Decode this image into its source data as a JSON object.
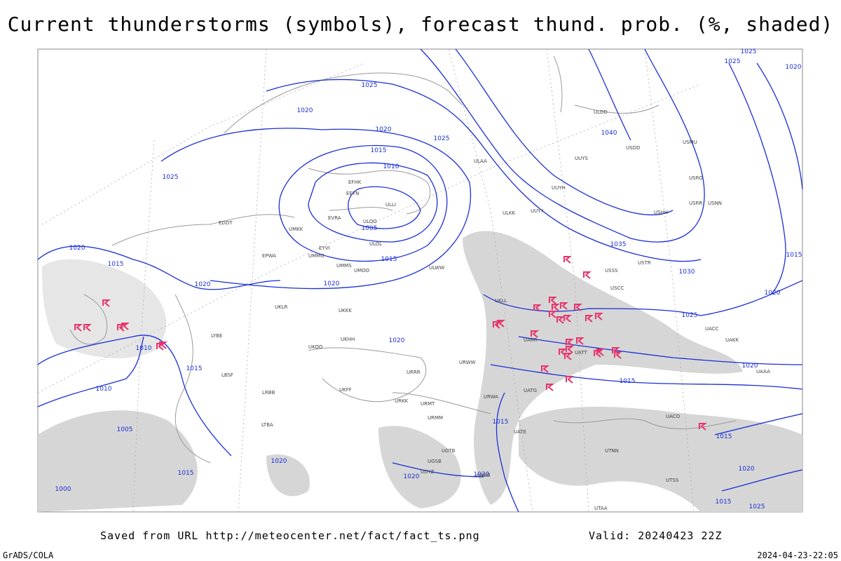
{
  "header": {
    "title": "Current thunderstorms (symbols), forecast thund. prob. (%, shaded)"
  },
  "footer": {
    "source": "Saved from URL http://meteocenter.net/fact/fact_ts.png",
    "valid": "Valid: 20240423 22Z",
    "credit": "GrADS/COLA",
    "timestamp": "2024-04-23-22:05"
  },
  "isobar_labels": [
    "1025",
    "1020",
    "1020",
    "1025",
    "1015",
    "1010",
    "1005",
    "1015",
    "1020",
    "1025",
    "1020",
    "1015",
    "1020",
    "1010",
    "1015",
    "1010",
    "1005",
    "1000",
    "1015",
    "1020",
    "1020",
    "1020",
    "1020",
    "1015",
    "1015",
    "1020",
    "1025",
    "1030",
    "1035",
    "1040",
    "1025",
    "1025",
    "1020",
    "1020",
    "1015",
    "1015",
    "1020",
    "1015",
    "1025"
  ],
  "stations": [
    "EFHK",
    "EETN",
    "ULLI",
    "ULOO",
    "EVRA",
    "ULOL",
    "UMMG",
    "EYVI",
    "UMMS",
    "UMOO",
    "ULWW",
    "ULAA",
    "ULKK",
    "UUYY",
    "UUYH",
    "UUYS",
    "ULDD",
    "USDD",
    "USMU",
    "USRO",
    "USRR",
    "USNN",
    "USHH",
    "USSS",
    "USTR",
    "USCC",
    "UACC",
    "UAKK",
    "UAAA",
    "UATT",
    "UARR",
    "UATG",
    "UATE",
    "UTNN",
    "UACO",
    "UKLL",
    "UKKK",
    "UKOO",
    "UKHH",
    "UKFF",
    "URRR",
    "URKK",
    "URMT",
    "URMM",
    "URWW",
    "URWA",
    "UGTB",
    "UGSB",
    "UBBB",
    "UDYZ",
    "UTAA",
    "UTSS",
    "LYBE",
    "LBSF",
    "LRBB",
    "LTBA",
    "UMKK",
    "EPWA",
    "UKLR",
    "EDDT"
  ]
}
